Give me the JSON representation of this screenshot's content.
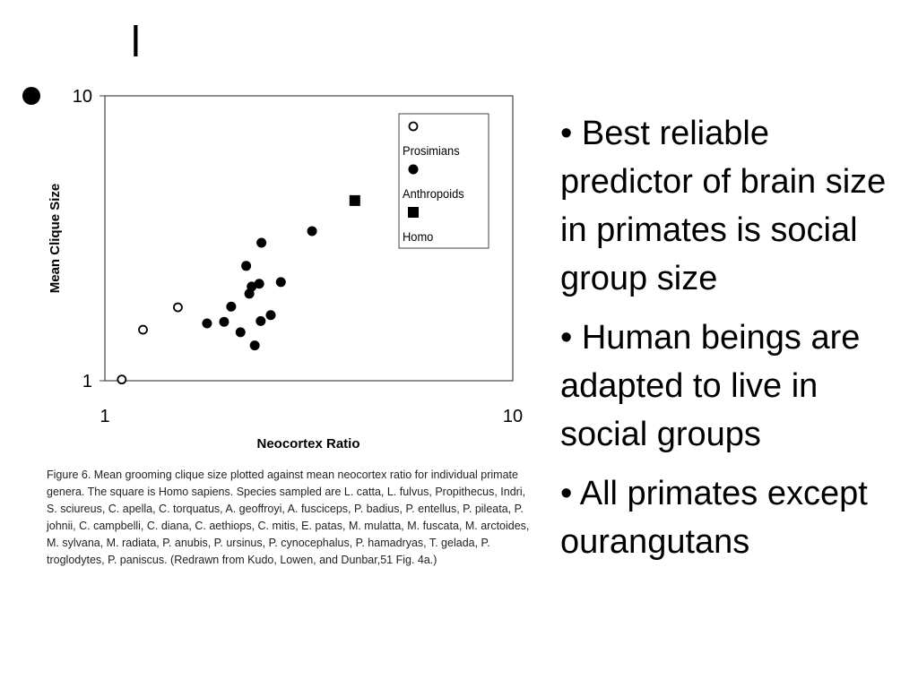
{
  "slide": {
    "title": "l",
    "bullets": [
      "• Best reliable predictor of brain size in primates is social group size",
      "• Human beings are adapted to live in social groups",
      "• All primates except ourangutans"
    ],
    "caption": "Figure 6. Mean grooming clique size plotted against mean neocortex ratio for individual primate genera. The square is Homo sapiens. Species sampled are L. catta, L. fulvus, Propithecus, Indri, S. sciureus, C. apella, C. torquatus, A. geoffroyi, A. fusciceps, P. badius, P. entellus, P. pileata, P. johnii, C. campbelli, C. diana, C. aethiops, C. mitis, E. patas, M. mulatta, M. fuscata, M. arctoides, M. sylvana, M. radiata, P. anubis, P. ursinus, P. cynocephalus, P. hamadryas, T. gelada, P. troglodytes, P. paniscus. (Redrawn from Kudo, Lowen, and Dunbar,51 Fig. 4a.)"
  },
  "chart_data": {
    "type": "scatter",
    "x_label": "Neocortex Ratio",
    "y_label": "Mean Clique Size",
    "xlim": [
      1,
      10
    ],
    "ylim": [
      1,
      10
    ],
    "xticks": [
      1,
      10
    ],
    "yticks": [
      1,
      10
    ],
    "xscale": "log",
    "yscale": "log",
    "series": [
      {
        "name": "Prosimians",
        "color": "#000000",
        "marker": "open-circle",
        "x": [
          1.1,
          1.24,
          1.51
        ],
        "values": [
          1.01,
          1.51,
          1.81
        ]
      },
      {
        "name": "Anthropoids",
        "color": "#000000",
        "marker": "circle",
        "x": [
          1.78,
          1.96,
          2.04,
          2.15,
          2.22,
          2.26,
          2.29,
          2.39,
          2.33,
          2.41,
          2.42,
          2.55,
          2.7,
          3.22
        ],
        "values": [
          1.59,
          1.61,
          1.82,
          1.48,
          2.53,
          2.02,
          2.14,
          2.19,
          1.33,
          1.62,
          3.05,
          1.7,
          2.22,
          3.35
        ]
      },
      {
        "name": "Homo",
        "color": "#000000",
        "marker": "square",
        "x": [
          4.1
        ],
        "values": [
          4.29
        ]
      }
    ]
  }
}
